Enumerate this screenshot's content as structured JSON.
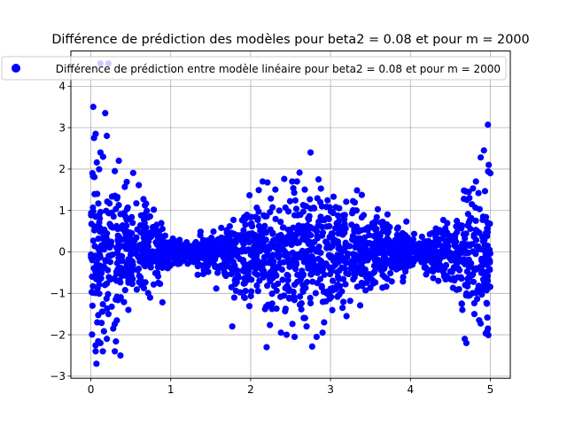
{
  "chart_data": {
    "type": "scatter",
    "title": "Différence de prédiction des modèles pour beta2 = 0.08 et pour m = 2000",
    "xlabel": "",
    "ylabel": "",
    "xlim": [
      -0.25,
      5.25
    ],
    "ylim": [
      -3.05,
      4.85
    ],
    "x_ticks": [
      0,
      1,
      2,
      3,
      4,
      5
    ],
    "y_ticks": [
      -3,
      -2,
      -1,
      0,
      1,
      2,
      3,
      4
    ],
    "grid": true,
    "legend": {
      "placement": "top",
      "entries": [
        "Différence de prédiction entre modèle linéaire pour beta2 = 0.08 et pour m = 2000"
      ]
    },
    "series": [
      {
        "name": "Différence de prédiction entre modèle linéaire pour beta2 = 0.08 et pour m = 2000",
        "color": "#0000ff",
        "points_shown": 2000,
        "points": [
          [
            0.03,
            3.5
          ],
          [
            0.06,
            2.85
          ],
          [
            0.04,
            2.75
          ],
          [
            0.18,
            3.35
          ],
          [
            0.2,
            2.8
          ],
          [
            0.35,
            2.2
          ],
          [
            0.3,
            1.95
          ],
          [
            0.12,
            2.4
          ],
          [
            0.02,
            1.9
          ],
          [
            0.08,
            1.4
          ],
          [
            0.02,
            -1.3
          ],
          [
            0.08,
            -1.7
          ],
          [
            0.06,
            -2.4
          ],
          [
            0.07,
            -2.7
          ],
          [
            0.12,
            -2.2
          ],
          [
            0.15,
            -2.4
          ],
          [
            0.2,
            -2.1
          ],
          [
            0.28,
            -1.85
          ],
          [
            0.3,
            -2.4
          ],
          [
            0.37,
            -2.5
          ],
          [
            0.22,
            -1.5
          ],
          [
            0.47,
            -1.4
          ],
          [
            0.12,
            4.55
          ],
          [
            0.22,
            4.55
          ],
          [
            2.75,
            2.4
          ],
          [
            2.85,
            1.75
          ],
          [
            2.52,
            1.7
          ],
          [
            2.58,
            1.7
          ],
          [
            2.15,
            1.7
          ],
          [
            2.2,
            -2.3
          ],
          [
            2.38,
            -1.95
          ],
          [
            2.45,
            -2.0
          ],
          [
            2.55,
            -2.05
          ],
          [
            2.7,
            -1.8
          ],
          [
            2.9,
            -1.95
          ],
          [
            2.92,
            -1.7
          ],
          [
            1.77,
            -1.8
          ],
          [
            3.2,
            -1.55
          ],
          [
            3.15,
            -1.35
          ],
          [
            4.97,
            3.07
          ],
          [
            4.92,
            2.45
          ],
          [
            4.88,
            2.28
          ],
          [
            4.98,
            2.1
          ],
          [
            5.0,
            1.9
          ],
          [
            4.82,
            1.7
          ],
          [
            4.73,
            1.45
          ],
          [
            4.68,
            -2.1
          ],
          [
            4.7,
            -2.2
          ],
          [
            4.65,
            -1.4
          ],
          [
            4.86,
            -1.65
          ],
          [
            4.97,
            -1.85
          ],
          [
            4.8,
            -1.5
          ],
          [
            4.35,
            -0.7
          ],
          [
            4.4,
            0.45
          ]
        ]
      }
    ]
  }
}
